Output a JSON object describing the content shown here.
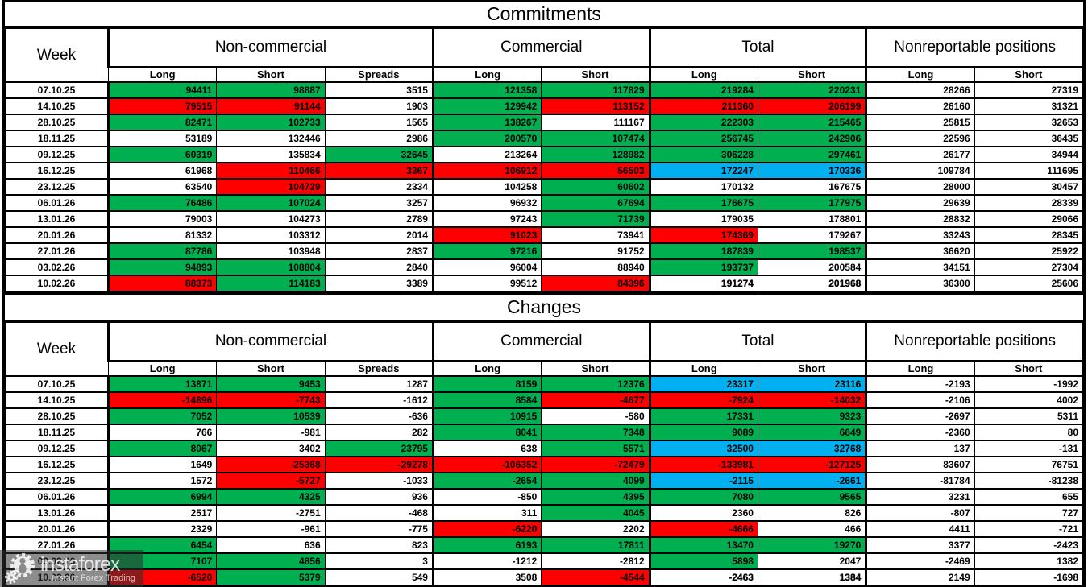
{
  "colors": {
    "g": "#00B050",
    "r": "#FF0000",
    "b": "#00B0F0",
    "w": "#FFFFFF"
  },
  "chart_data": [
    {
      "type": "table",
      "title": "Commitments",
      "week_label": "Week",
      "header_groups": [
        {
          "label": "Non-commercial",
          "subcols": [
            "Long",
            "Short",
            "Spreads"
          ]
        },
        {
          "label": "Commercial",
          "subcols": [
            "Long",
            "Short"
          ]
        },
        {
          "label": "Total",
          "subcols": [
            "Long",
            "Short"
          ]
        },
        {
          "label": "Nonreportable positions",
          "subcols": [
            "Long",
            "Short"
          ]
        }
      ],
      "rows": [
        {
          "week": "07.10.25",
          "values": [
            94411,
            98887,
            3515,
            121358,
            117829,
            219284,
            220231,
            28266,
            27319
          ],
          "colors": "ggwggggww"
        },
        {
          "week": "14.10.25",
          "values": [
            79515,
            91144,
            1903,
            129942,
            113152,
            211360,
            206199,
            26160,
            31321
          ],
          "colors": "rrwgrrrww"
        },
        {
          "week": "28.10.25",
          "values": [
            82471,
            102733,
            1565,
            138267,
            111167,
            222303,
            215465,
            25815,
            32653
          ],
          "colors": "ggwgwggww"
        },
        {
          "week": "18.11.25",
          "values": [
            53189,
            132446,
            2986,
            200570,
            107474,
            256745,
            242906,
            22596,
            36435
          ],
          "colors": "wwwggggww"
        },
        {
          "week": "09.12.25",
          "values": [
            60319,
            135834,
            32645,
            213264,
            128982,
            306228,
            297461,
            26177,
            34944
          ],
          "colors": "gwgwgggww"
        },
        {
          "week": "16.12.25",
          "values": [
            61968,
            110466,
            3367,
            106912,
            56503,
            172247,
            170336,
            109784,
            111695
          ],
          "colors": "wrrrrbbww"
        },
        {
          "week": "23.12.25",
          "values": [
            63540,
            104739,
            2334,
            104258,
            60602,
            170132,
            167675,
            28000,
            30457
          ],
          "colors": "wrwwgwwww"
        },
        {
          "week": "06.01.26",
          "values": [
            76486,
            107024,
            3257,
            96932,
            67694,
            176675,
            177975,
            29639,
            28339
          ],
          "colors": "ggwwgggww"
        },
        {
          "week": "13.01.26",
          "values": [
            79003,
            104273,
            2789,
            97243,
            71739,
            179035,
            178801,
            28832,
            29066
          ],
          "colors": "wwwwgwwww"
        },
        {
          "week": "20.01.26",
          "values": [
            81332,
            103312,
            2014,
            91023,
            73941,
            174369,
            179267,
            33243,
            28345
          ],
          "colors": "wwwrwrwww"
        },
        {
          "week": "27.01.26",
          "values": [
            87786,
            103948,
            2837,
            97216,
            91752,
            187839,
            198537,
            36620,
            25922
          ],
          "colors": "gwwgwggww"
        },
        {
          "week": "03.02.26",
          "values": [
            94893,
            108804,
            2840,
            96004,
            88940,
            193737,
            200584,
            34151,
            27304
          ],
          "colors": "ggwwwgwww"
        },
        {
          "week": "10.02.26",
          "values": [
            88373,
            114183,
            3389,
            99512,
            84396,
            191274,
            201968,
            36300,
            25606
          ],
          "colors": "rgwwrwwww",
          "bold": [
            5,
            6
          ]
        }
      ]
    },
    {
      "type": "table",
      "title": "Changes",
      "week_label": "Week",
      "header_groups": [
        {
          "label": "Non-commercial",
          "subcols": [
            "Long",
            "Short",
            "Spreads"
          ]
        },
        {
          "label": "Commercial",
          "subcols": [
            "Long",
            "Short"
          ]
        },
        {
          "label": "Total",
          "subcols": [
            "Long",
            "Short"
          ]
        },
        {
          "label": "Nonreportable positions",
          "subcols": [
            "Long",
            "Short"
          ]
        }
      ],
      "rows": [
        {
          "week": "07.10.25",
          "values": [
            13871,
            9453,
            1287,
            8159,
            12376,
            23317,
            23116,
            -2193,
            -1992
          ],
          "colors": "ggwggbbww"
        },
        {
          "week": "14.10.25",
          "values": [
            -14896,
            -7743,
            -1612,
            8584,
            -4677,
            -7924,
            -14032,
            -2106,
            4002
          ],
          "colors": "rrwgrrrww"
        },
        {
          "week": "28.10.25",
          "values": [
            7052,
            10539,
            -636,
            10915,
            -580,
            17331,
            9323,
            -2697,
            5311
          ],
          "colors": "ggwgwggww"
        },
        {
          "week": "18.11.25",
          "values": [
            766,
            -981,
            282,
            8041,
            7348,
            9089,
            6649,
            -2360,
            80
          ],
          "colors": "wwwggggww"
        },
        {
          "week": "09.12.25",
          "values": [
            8067,
            3402,
            23795,
            638,
            5571,
            32500,
            32768,
            137,
            -131
          ],
          "colors": "gwgwgbbww"
        },
        {
          "week": "16.12.25",
          "values": [
            1649,
            -25368,
            -29278,
            -106352,
            -72479,
            -133981,
            -127125,
            83607,
            76751
          ],
          "colors": "wrrrrrrww"
        },
        {
          "week": "23.12.25",
          "values": [
            1572,
            -5727,
            -1033,
            -2654,
            4099,
            -2115,
            -2661,
            -81784,
            -81238
          ],
          "colors": "wrwggbbww"
        },
        {
          "week": "06.01.26",
          "values": [
            6994,
            4325,
            936,
            -850,
            4395,
            7080,
            9565,
            3231,
            655
          ],
          "colors": "ggwwgggww"
        },
        {
          "week": "13.01.26",
          "values": [
            2517,
            -2751,
            -468,
            311,
            4045,
            2360,
            826,
            -807,
            727
          ],
          "colors": "wwwwgwwww"
        },
        {
          "week": "20.01.26",
          "values": [
            2329,
            -961,
            -775,
            -6220,
            2202,
            -4666,
            466,
            4411,
            -721
          ],
          "colors": "wwwrwrwww"
        },
        {
          "week": "27.01.26",
          "values": [
            6454,
            636,
            823,
            6193,
            17811,
            13470,
            19270,
            3377,
            -2423
          ],
          "colors": "gwwggggww"
        },
        {
          "week": "03.02.26",
          "values": [
            7107,
            4856,
            3,
            -1212,
            -2812,
            5898,
            2047,
            -2469,
            1382
          ],
          "colors": "ggwwwgwww"
        },
        {
          "week": "10.02.26",
          "values": [
            -6520,
            5379,
            549,
            3508,
            -4544,
            -2463,
            1384,
            2149,
            -1698
          ],
          "colors": "rgwwrwwww",
          "bold": [
            5,
            6
          ]
        }
      ]
    }
  ],
  "watermark": {
    "brand": "instaforex",
    "tagline": "Instant Forex Trading"
  }
}
